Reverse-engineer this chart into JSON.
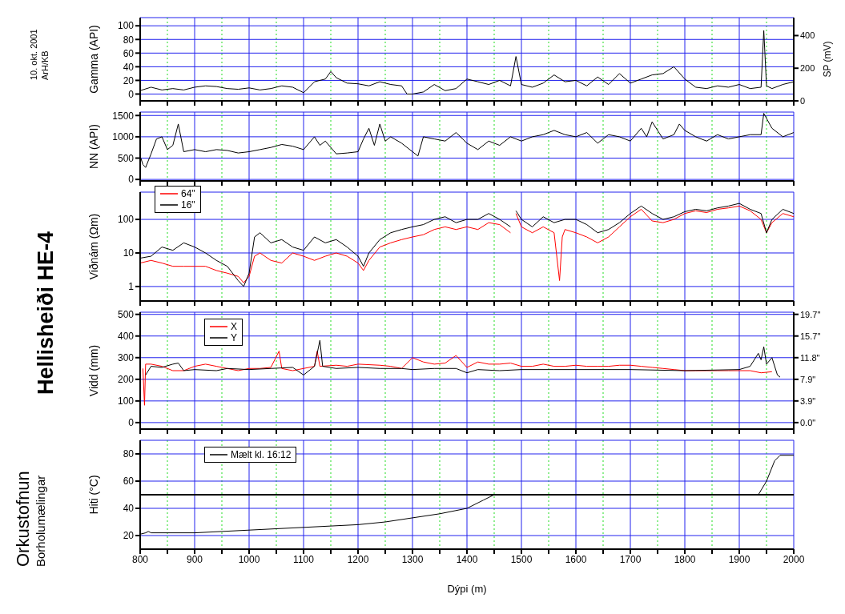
{
  "chart_data": [
    {
      "type": "line",
      "title": "Hellisheiði HE-4",
      "annotations": [
        "10. okt. 2001",
        "ArH/KB",
        "Orkustofnun",
        "Borholumælingar"
      ],
      "ylabel": "Gamma (API)",
      "y2label": "SP (mV)",
      "xlim": [
        800,
        2000
      ],
      "xticks": [
        800,
        {
          "value": 850,
          "label": null
        },
        900,
        {
          "value": 950,
          "label": null
        },
        1000,
        {
          "value": 1050,
          "label": null
        },
        1100,
        {
          "value": 1150,
          "label": null
        },
        1200,
        {
          "value": 1250,
          "label": null
        },
        1300,
        {
          "value": 1350,
          "label": null
        },
        1400,
        {
          "value": 1450,
          "label": null
        },
        1500,
        {
          "value": 1550,
          "label": null
        },
        1600,
        {
          "value": 1650,
          "label": null
        },
        1700,
        {
          "value": 1750,
          "label": null
        },
        1800,
        {
          "value": 1850,
          "label": null
        },
        1900,
        {
          "value": 1950,
          "label": null
        },
        2000
      ],
      "ylim": [
        -10,
        112
      ],
      "yticks": [
        0,
        20,
        40,
        60,
        80,
        100
      ],
      "y2lim": [
        0,
        510
      ],
      "y2ticks": [
        0,
        200,
        400
      ],
      "grid": true,
      "tick_labels": "y",
      "series": [
        {
          "color": "#000000",
          "x": [
            800,
            820,
            840,
            860,
            880,
            900,
            920,
            940,
            960,
            980,
            1000,
            1020,
            1040,
            1060,
            1080,
            1100,
            1120,
            1140,
            1150,
            1160,
            1180,
            1200,
            1220,
            1240,
            1260,
            1280,
            1290,
            1300,
            1320,
            1340,
            1360,
            1380,
            1400,
            1420,
            1440,
            1460,
            1480,
            1490,
            1500,
            1520,
            1540,
            1560,
            1580,
            1600,
            1620,
            1640,
            1660,
            1680,
            1700,
            1720,
            1740,
            1760,
            1780,
            1800,
            1820,
            1840,
            1860,
            1880,
            1900,
            1920,
            1940,
            1945,
            1950,
            1960,
            1980,
            2000
          ],
          "values": [
            5,
            10,
            6,
            8,
            6,
            10,
            12,
            11,
            8,
            7,
            9,
            6,
            8,
            12,
            10,
            2,
            18,
            22,
            33,
            24,
            16,
            15,
            12,
            18,
            14,
            12,
            0,
            0,
            3,
            14,
            5,
            8,
            22,
            18,
            14,
            20,
            12,
            55,
            14,
            10,
            16,
            28,
            18,
            20,
            12,
            25,
            14,
            30,
            16,
            22,
            28,
            30,
            40,
            22,
            10,
            8,
            12,
            10,
            14,
            8,
            10,
            93,
            12,
            8,
            14,
            18
          ]
        }
      ]
    },
    {
      "type": "line",
      "ylabel": "NN (API)",
      "xlim": [
        800,
        2000
      ],
      "xticks": [
        800,
        {
          "value": 850,
          "label": null
        },
        900,
        {
          "value": 950,
          "label": null
        },
        1000,
        {
          "value": 1050,
          "label": null
        },
        1100,
        {
          "value": 1150,
          "label": null
        },
        1200,
        {
          "value": 1250,
          "label": null
        },
        1300,
        {
          "value": 1350,
          "label": null
        },
        1400,
        {
          "value": 1450,
          "label": null
        },
        1500,
        {
          "value": 1550,
          "label": null
        },
        1600,
        {
          "value": 1650,
          "label": null
        },
        1700,
        {
          "value": 1750,
          "label": null
        },
        1800,
        {
          "value": 1850,
          "label": null
        },
        1900,
        {
          "value": 1950,
          "label": null
        },
        2000
      ],
      "ylim": [
        -35,
        1580
      ],
      "yticks": [
        0,
        500,
        1000,
        1500
      ],
      "grid": true,
      "tick_labels": "y",
      "series": [
        {
          "color": "#000000",
          "x": [
            800,
            805,
            810,
            820,
            830,
            840,
            850,
            860,
            870,
            880,
            900,
            920,
            940,
            960,
            980,
            1000,
            1020,
            1040,
            1060,
            1080,
            1100,
            1120,
            1130,
            1140,
            1160,
            1180,
            1200,
            1210,
            1220,
            1230,
            1240,
            1250,
            1260,
            1280,
            1300,
            1310,
            1320,
            1340,
            1360,
            1380,
            1400,
            1420,
            1440,
            1460,
            1480,
            1500,
            1520,
            1540,
            1560,
            1580,
            1600,
            1620,
            1640,
            1660,
            1680,
            1700,
            1720,
            1730,
            1740,
            1760,
            1780,
            1790,
            1800,
            1820,
            1840,
            1860,
            1880,
            1900,
            1920,
            1940,
            1945,
            1960,
            1980,
            2000
          ],
          "values": [
            550,
            350,
            280,
            600,
            950,
            1000,
            700,
            800,
            1300,
            650,
            700,
            650,
            700,
            680,
            620,
            650,
            700,
            750,
            820,
            780,
            700,
            1000,
            800,
            900,
            600,
            620,
            650,
            950,
            1200,
            800,
            1300,
            900,
            1000,
            850,
            650,
            550,
            1000,
            950,
            900,
            1100,
            850,
            700,
            900,
            800,
            1000,
            900,
            1000,
            1050,
            1150,
            1050,
            1000,
            1100,
            850,
            1050,
            1000,
            900,
            1200,
            1000,
            1350,
            950,
            1050,
            1300,
            1150,
            1000,
            900,
            1050,
            950,
            1000,
            1050,
            1050,
            1550,
            1200,
            1000,
            1100
          ]
        }
      ]
    },
    {
      "type": "line",
      "ylabel": "Viðnám (Ωm)",
      "log": true,
      "legend": "left",
      "xlim": [
        800,
        2000
      ],
      "xticks": [
        800,
        {
          "value": 850,
          "label": null
        },
        900,
        {
          "value": 950,
          "label": null
        },
        1000,
        {
          "value": 1050,
          "label": null
        },
        1100,
        {
          "value": 1150,
          "label": null
        },
        1200,
        {
          "value": 1250,
          "label": null
        },
        1300,
        {
          "value": 1350,
          "label": null
        },
        1400,
        {
          "value": 1450,
          "label": null
        },
        1500,
        {
          "value": 1550,
          "label": null
        },
        1600,
        {
          "value": 1650,
          "label": null
        },
        1700,
        {
          "value": 1750,
          "label": null
        },
        1800,
        {
          "value": 1850,
          "label": null
        },
        1900,
        {
          "value": 1950,
          "label": null
        },
        2000
      ],
      "ylim": [
        0.37,
        650
      ],
      "yticks": [
        1,
        10,
        100
      ],
      "grid": true,
      "tick_labels": "y",
      "series": [
        {
          "name": "64\"",
          "color": "#ff0000",
          "x": [
            800,
            820,
            840,
            860,
            880,
            900,
            920,
            940,
            960,
            980,
            990,
            1000,
            1010,
            1020,
            1040,
            1060,
            1080,
            1100,
            1120,
            1140,
            1160,
            1180,
            1200,
            1210,
            1220,
            1240,
            1260,
            1280,
            1300,
            1320,
            1340,
            1360,
            1380,
            1400,
            1420,
            1440,
            1460,
            1480,
            1485,
            1490,
            1500,
            1520,
            1540,
            1560,
            1570,
            1575,
            1580,
            1600,
            1620,
            1640,
            1660,
            1680,
            1700,
            1720,
            1740,
            1760,
            1780,
            1800,
            1820,
            1840,
            1860,
            1880,
            1900,
            1920,
            1940,
            1950,
            1960,
            1980,
            2000
          ],
          "values": [
            5,
            6,
            5,
            4,
            4,
            4,
            4,
            3,
            2.5,
            2,
            1.3,
            2,
            8,
            10,
            6,
            5,
            10,
            8,
            6,
            8,
            10,
            8,
            5,
            3,
            6,
            15,
            20,
            25,
            30,
            35,
            50,
            60,
            50,
            60,
            50,
            80,
            70,
            40,
            null,
            150,
            60,
            40,
            60,
            40,
            1.5,
            30,
            50,
            40,
            30,
            20,
            30,
            60,
            120,
            200,
            90,
            80,
            100,
            150,
            180,
            160,
            200,
            220,
            250,
            180,
            100,
            40,
            80,
            150,
            120
          ]
        },
        {
          "name": "16\"",
          "color": "#000000",
          "x": [
            800,
            820,
            840,
            860,
            880,
            900,
            920,
            940,
            960,
            980,
            990,
            1000,
            1010,
            1020,
            1040,
            1060,
            1080,
            1100,
            1120,
            1140,
            1160,
            1180,
            1200,
            1210,
            1220,
            1240,
            1260,
            1280,
            1300,
            1320,
            1340,
            1360,
            1380,
            1400,
            1420,
            1440,
            1460,
            1480,
            1485,
            1490,
            1500,
            1520,
            1540,
            1560,
            1580,
            1600,
            1620,
            1640,
            1660,
            1680,
            1700,
            1720,
            1740,
            1760,
            1780,
            1800,
            1820,
            1840,
            1860,
            1880,
            1900,
            1920,
            1940,
            1950,
            1960,
            1980,
            2000
          ],
          "values": [
            7,
            8,
            15,
            12,
            20,
            15,
            10,
            6,
            4,
            1.5,
            1,
            2.5,
            30,
            40,
            20,
            25,
            15,
            12,
            30,
            20,
            25,
            15,
            8,
            4,
            10,
            25,
            40,
            50,
            60,
            70,
            100,
            120,
            80,
            100,
            100,
            150,
            100,
            60,
            null,
            180,
            100,
            60,
            120,
            80,
            100,
            100,
            70,
            40,
            50,
            80,
            150,
            250,
            150,
            100,
            120,
            170,
            200,
            180,
            220,
            250,
            300,
            200,
            150,
            40,
            100,
            200,
            150
          ]
        }
      ]
    },
    {
      "type": "line",
      "ylabel": "Vidd (mm)",
      "legend": "top left",
      "xlim": [
        800,
        2000
      ],
      "xticks": [
        800,
        {
          "value": 850,
          "label": null
        },
        900,
        {
          "value": 950,
          "label": null
        },
        1000,
        {
          "value": 1050,
          "label": null
        },
        1100,
        {
          "value": 1150,
          "label": null
        },
        1200,
        {
          "value": 1250,
          "label": null
        },
        1300,
        {
          "value": 1350,
          "label": null
        },
        1400,
        {
          "value": 1450,
          "label": null
        },
        1500,
        {
          "value": 1550,
          "label": null
        },
        1600,
        {
          "value": 1650,
          "label": null
        },
        1700,
        {
          "value": 1750,
          "label": null
        },
        1800,
        {
          "value": 1850,
          "label": null
        },
        1900,
        {
          "value": 1950,
          "label": null
        },
        2000
      ],
      "ylim": [
        -30,
        510
      ],
      "yticks": [
        0,
        100,
        200,
        300,
        400,
        500
      ],
      "y2lim": [
        -1.18,
        20.08
      ],
      "y2ticks": [
        {
          "value": 0,
          "label": "0.0\""
        },
        {
          "value": 3.94,
          "label": "3.9\""
        },
        {
          "value": 7.87,
          "label": "7.9\""
        },
        {
          "value": 11.81,
          "label": "11.8\""
        },
        {
          "value": 15.75,
          "label": "15.7\""
        },
        {
          "value": 19.69,
          "label": "19.7\""
        }
      ],
      "grid": true,
      "tick_labels": "y",
      "series": [
        {
          "name": "X",
          "color": "#ff0000",
          "x": [
            805,
            808,
            810,
            820,
            840,
            860,
            880,
            900,
            920,
            940,
            960,
            980,
            1000,
            1020,
            1040,
            1055,
            1060,
            1080,
            1100,
            1120,
            1125,
            1130,
            1160,
            1180,
            1200,
            1240,
            1260,
            1280,
            1300,
            1320,
            1340,
            1360,
            1380,
            1400,
            1420,
            1440,
            1460,
            1480,
            1500,
            1520,
            1540,
            1560,
            1580,
            1600,
            1620,
            1640,
            1660,
            1680,
            1700,
            1720,
            1740,
            1760,
            1780,
            1800,
            1820,
            1840,
            1860,
            1880,
            1900,
            1920,
            1940,
            1960
          ],
          "values": [
            250,
            80,
            270,
            270,
            260,
            240,
            240,
            260,
            270,
            260,
            250,
            240,
            250,
            250,
            255,
            330,
            250,
            240,
            250,
            260,
            330,
            260,
            265,
            260,
            270,
            265,
            260,
            250,
            300,
            280,
            270,
            275,
            310,
            255,
            280,
            270,
            270,
            275,
            260,
            260,
            270,
            260,
            260,
            265,
            260,
            260,
            260,
            265,
            265,
            260,
            255,
            250,
            245,
            240,
            240,
            240,
            240,
            240,
            240,
            240,
            230,
            235
          ]
        },
        {
          "name": "Y",
          "color": "#000000",
          "x": [
            810,
            820,
            840,
            860,
            870,
            880,
            900,
            940,
            960,
            1000,
            1040,
            1080,
            1100,
            1120,
            1130,
            1135,
            1160,
            1200,
            1240,
            1280,
            1300,
            1340,
            1380,
            1400,
            1420,
            1460,
            1500,
            1560,
            1600,
            1700,
            1800,
            1900,
            1920,
            1935,
            1940,
            1945,
            1950,
            1960,
            1970,
            1975
          ],
          "values": [
            220,
            260,
            255,
            270,
            275,
            240,
            245,
            240,
            250,
            245,
            250,
            255,
            220,
            260,
            380,
            260,
            250,
            255,
            250,
            250,
            245,
            250,
            250,
            230,
            245,
            240,
            245,
            245,
            245,
            245,
            240,
            245,
            260,
            320,
            290,
            350,
            270,
            300,
            220,
            210
          ]
        }
      ]
    },
    {
      "type": "line",
      "ylabel": "Hiti (°C)",
      "xlabel": "Dýpi (m)",
      "legend": "top left",
      "xlim": [
        800,
        2000
      ],
      "xticks": [
        800,
        {
          "value": 850,
          "label": null
        },
        900,
        {
          "value": 950,
          "label": null
        },
        1000,
        {
          "value": 1050,
          "label": null
        },
        1100,
        {
          "value": 1150,
          "label": null
        },
        1200,
        {
          "value": 1250,
          "label": null
        },
        1300,
        {
          "value": 1350,
          "label": null
        },
        1400,
        {
          "value": 1450,
          "label": null
        },
        1500,
        {
          "value": 1550,
          "label": null
        },
        1600,
        {
          "value": 1650,
          "label": null
        },
        1700,
        {
          "value": 1750,
          "label": null
        },
        1800,
        {
          "value": 1850,
          "label": null
        },
        1900,
        {
          "value": 1950,
          "label": null
        },
        2000
      ],
      "ylim": [
        10,
        90
      ],
      "yticks": [
        20,
        40,
        60,
        80
      ],
      "grid": true,
      "ref_lines": [
        {
          "axis": "y",
          "value": 50,
          "color": "#000000"
        }
      ],
      "series": [
        {
          "name": "Mælt kl. 16:12",
          "color": "#000000",
          "x": [
            800,
            810,
            815,
            820,
            900,
            1000,
            1100,
            1200,
            1250,
            1300,
            1350,
            1400,
            1430,
            1450,
            1600,
            1800,
            1935,
            1950,
            1965,
            1975,
            2000
          ],
          "values": [
            21,
            22,
            23,
            22,
            22,
            24,
            26,
            28,
            30,
            33,
            36,
            40,
            46,
            50,
            50,
            50,
            50,
            60,
            75,
            79,
            79
          ]
        }
      ]
    }
  ]
}
